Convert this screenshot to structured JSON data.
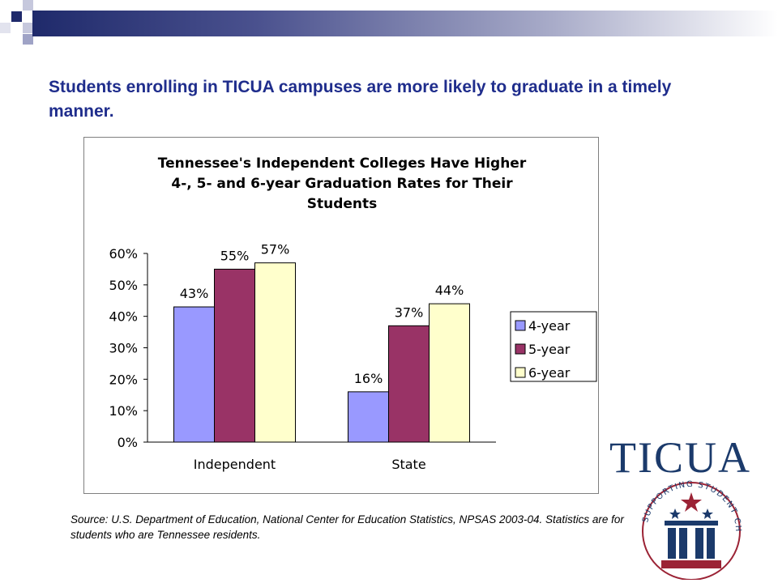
{
  "slide": {
    "headline": "Students enrolling in TICUA campuses are more likely to graduate in a timely manner.",
    "source": "Source: U.S. Department of Education, National Center for Education Statistics, NPSAS 2003-04.  Statistics are for students who are Tennessee residents."
  },
  "logo": {
    "name": "TICUA",
    "ring_text": "SUPPORTING STUDENT CHOICE"
  },
  "colors": {
    "headline": "#1f2d8c",
    "series": [
      "#9999ff",
      "#993366",
      "#ffffcc"
    ]
  },
  "chart_data": {
    "type": "bar",
    "title": "Tennessee's Independent Colleges Have Higher\n4-, 5- and 6-year Graduation Rates for Their\nStudents",
    "categories": [
      "Independent",
      "State"
    ],
    "series": [
      {
        "name": "4-year",
        "values": [
          43,
          16
        ],
        "labels": [
          "43%",
          "16%"
        ]
      },
      {
        "name": "5-year",
        "values": [
          55,
          37
        ],
        "labels": [
          "55%",
          "37%"
        ]
      },
      {
        "name": "6-year",
        "values": [
          57,
          44
        ],
        "labels": [
          "57%",
          "44%"
        ]
      }
    ],
    "y_ticks": [
      "0%",
      "10%",
      "20%",
      "30%",
      "40%",
      "50%",
      "60%"
    ],
    "ylim": [
      0,
      60
    ],
    "grid": false,
    "legend_position": "right"
  }
}
